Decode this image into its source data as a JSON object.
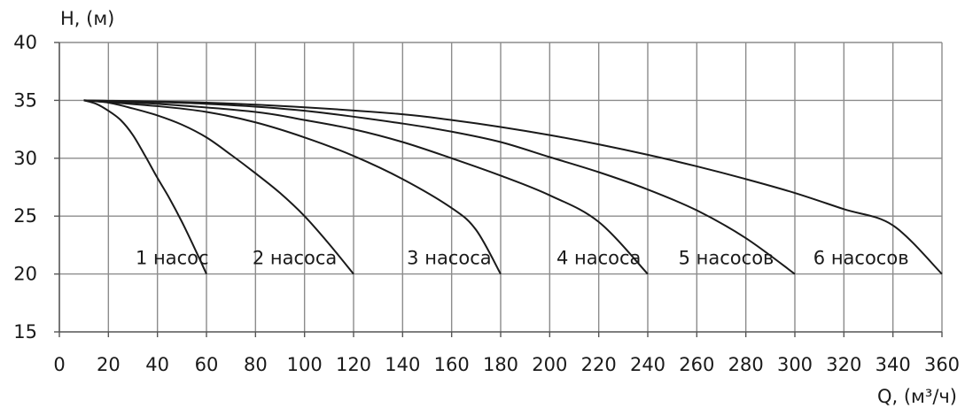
{
  "chart_data": {
    "type": "line",
    "ylabel": "H, (м)",
    "xlabel": "Q, (м³/ч)",
    "xlim": [
      0,
      360
    ],
    "ylim": [
      15,
      40
    ],
    "x_ticks": [
      "0",
      "20",
      "40",
      "60",
      "80",
      "100",
      "120",
      "140",
      "160",
      "180",
      "200",
      "220",
      "240",
      "260",
      "280",
      "300",
      "320",
      "340",
      "360"
    ],
    "y_ticks": [
      "40",
      "35",
      "30",
      "25",
      "20",
      "15"
    ],
    "grid": true,
    "line_color": "#1a1a1a",
    "series": [
      {
        "name": "1 насос",
        "label_at": [
          46,
          21.4
        ],
        "points": [
          [
            10,
            35
          ],
          [
            15,
            34.7
          ],
          [
            20,
            34.1
          ],
          [
            25,
            33.3
          ],
          [
            30,
            32
          ],
          [
            35,
            30.2
          ],
          [
            40,
            28.3
          ],
          [
            45,
            26.5
          ],
          [
            50,
            24.5
          ],
          [
            55,
            22.3
          ],
          [
            60,
            20
          ]
        ]
      },
      {
        "name": "2 насоса",
        "label_at": [
          96,
          21.4
        ],
        "points": [
          [
            10,
            35
          ],
          [
            20,
            34.8
          ],
          [
            30,
            34.3
          ],
          [
            40,
            33.7
          ],
          [
            50,
            32.9
          ],
          [
            60,
            31.8
          ],
          [
            70,
            30.3
          ],
          [
            80,
            28.7
          ],
          [
            90,
            27
          ],
          [
            100,
            25
          ],
          [
            110,
            22.6
          ],
          [
            120,
            20
          ]
        ]
      },
      {
        "name": "3 насоса",
        "label_at": [
          159,
          21.4
        ],
        "points": [
          [
            10,
            35
          ],
          [
            40,
            34.5
          ],
          [
            60,
            34
          ],
          [
            80,
            33.1
          ],
          [
            100,
            31.8
          ],
          [
            120,
            30.2
          ],
          [
            140,
            28.2
          ],
          [
            160,
            25.7
          ],
          [
            170,
            23.8
          ],
          [
            180,
            20
          ]
        ]
      },
      {
        "name": "4 насоса",
        "label_at": [
          220,
          21.4
        ],
        "points": [
          [
            10,
            35
          ],
          [
            40,
            34.7
          ],
          [
            80,
            34
          ],
          [
            100,
            33.3
          ],
          [
            120,
            32.5
          ],
          [
            140,
            31.4
          ],
          [
            160,
            30
          ],
          [
            180,
            28.5
          ],
          [
            200,
            26.8
          ],
          [
            220,
            24.5
          ],
          [
            240,
            20
          ]
        ]
      },
      {
        "name": "5 насосов",
        "label_at": [
          272,
          21.4
        ],
        "points": [
          [
            10,
            35
          ],
          [
            60,
            34.7
          ],
          [
            100,
            34.1
          ],
          [
            140,
            33
          ],
          [
            160,
            32.3
          ],
          [
            180,
            31.4
          ],
          [
            200,
            30.1
          ],
          [
            220,
            28.8
          ],
          [
            240,
            27.3
          ],
          [
            260,
            25.5
          ],
          [
            280,
            23.1
          ],
          [
            300,
            20
          ]
        ]
      },
      {
        "name": "6 насосов",
        "label_at": [
          327,
          21.4
        ],
        "points": [
          [
            10,
            35
          ],
          [
            60,
            34.8
          ],
          [
            100,
            34.4
          ],
          [
            140,
            33.8
          ],
          [
            160,
            33.3
          ],
          [
            180,
            32.7
          ],
          [
            200,
            32
          ],
          [
            220,
            31.2
          ],
          [
            240,
            30.3
          ],
          [
            260,
            29.3
          ],
          [
            280,
            28.2
          ],
          [
            300,
            27
          ],
          [
            320,
            25.6
          ],
          [
            340,
            24.2
          ],
          [
            360,
            20
          ]
        ]
      }
    ]
  }
}
